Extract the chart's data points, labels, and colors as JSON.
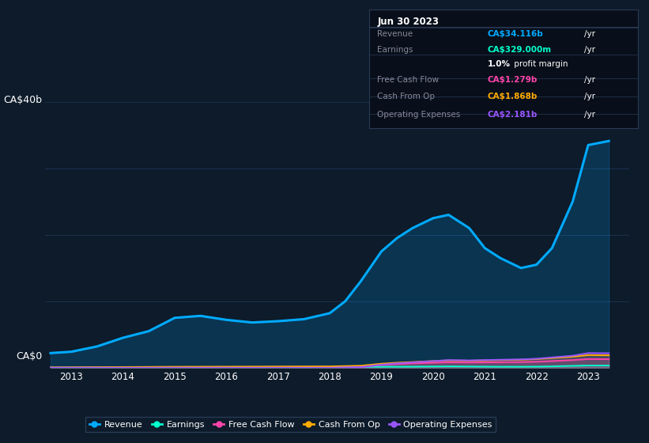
{
  "bg_color": "#0d1b2a",
  "plot_bg_color": "#0d1b2a",
  "grid_color": "#1e3050",
  "ylabel_top": "CA$40b",
  "ylabel_bottom": "CA$0",
  "x_years": [
    2012.6,
    2013.0,
    2013.5,
    2014.0,
    2014.5,
    2015.0,
    2015.5,
    2016.0,
    2016.5,
    2017.0,
    2017.5,
    2018.0,
    2018.3,
    2018.6,
    2019.0,
    2019.3,
    2019.6,
    2020.0,
    2020.3,
    2020.7,
    2021.0,
    2021.3,
    2021.7,
    2022.0,
    2022.3,
    2022.7,
    2023.0,
    2023.4
  ],
  "revenue": [
    2.2,
    2.4,
    3.2,
    4.5,
    5.5,
    7.5,
    7.8,
    7.2,
    6.8,
    7.0,
    7.3,
    8.2,
    10.0,
    13.0,
    17.5,
    19.5,
    21.0,
    22.5,
    23.0,
    21.0,
    18.0,
    16.5,
    15.0,
    15.5,
    18.0,
    25.0,
    33.5,
    34.116
  ],
  "earnings": [
    0.03,
    0.04,
    0.05,
    0.06,
    0.07,
    0.08,
    0.08,
    0.08,
    0.08,
    0.08,
    0.08,
    0.09,
    0.1,
    0.12,
    0.14,
    0.15,
    0.16,
    0.18,
    0.2,
    0.18,
    0.16,
    0.15,
    0.15,
    0.16,
    0.2,
    0.28,
    0.33,
    0.329
  ],
  "free_cash_flow": [
    0.0,
    0.0,
    0.0,
    0.0,
    0.0,
    0.0,
    0.0,
    0.0,
    0.0,
    0.0,
    0.0,
    0.0,
    0.05,
    0.1,
    0.4,
    0.55,
    0.65,
    0.75,
    0.8,
    0.78,
    0.8,
    0.82,
    0.85,
    0.9,
    1.0,
    1.15,
    1.3,
    1.279
  ],
  "cash_from_op": [
    0.05,
    0.06,
    0.08,
    0.1,
    0.12,
    0.14,
    0.15,
    0.16,
    0.17,
    0.18,
    0.19,
    0.2,
    0.25,
    0.3,
    0.6,
    0.75,
    0.85,
    1.0,
    1.1,
    1.05,
    1.1,
    1.15,
    1.2,
    1.3,
    1.45,
    1.65,
    1.9,
    1.868
  ],
  "operating_expenses": [
    0.0,
    0.0,
    0.0,
    0.0,
    0.0,
    0.0,
    0.0,
    0.0,
    0.0,
    0.0,
    0.0,
    0.0,
    0.05,
    0.1,
    0.45,
    0.65,
    0.8,
    1.0,
    1.15,
    1.1,
    1.15,
    1.2,
    1.25,
    1.35,
    1.55,
    1.8,
    2.2,
    2.181
  ],
  "revenue_color": "#00aaff",
  "earnings_color": "#00ffcc",
  "free_cash_flow_color": "#ff44aa",
  "cash_from_op_color": "#ffaa00",
  "operating_expenses_color": "#9955ff",
  "ylim": [
    0,
    40
  ],
  "xlim": [
    2012.5,
    2023.8
  ],
  "info_box_title": "Jun 30 2023",
  "info_rows": [
    {
      "label": "Revenue",
      "value": "CA$34.116b",
      "unit": "/yr",
      "val_color": "#00aaff"
    },
    {
      "label": "Earnings",
      "value": "CA$329.000m",
      "unit": "/yr",
      "val_color": "#00ffcc"
    },
    {
      "label": "",
      "value": "1.0%",
      "unit": " profit margin",
      "val_color": "#ffffff",
      "bold": true
    },
    {
      "label": "Free Cash Flow",
      "value": "CA$1.279b",
      "unit": "/yr",
      "val_color": "#ff44aa"
    },
    {
      "label": "Cash From Op",
      "value": "CA$1.868b",
      "unit": "/yr",
      "val_color": "#ffaa00"
    },
    {
      "label": "Operating Expenses",
      "value": "CA$2.181b",
      "unit": "/yr",
      "val_color": "#9955ff"
    }
  ],
  "legend_labels": [
    "Revenue",
    "Earnings",
    "Free Cash Flow",
    "Cash From Op",
    "Operating Expenses"
  ]
}
